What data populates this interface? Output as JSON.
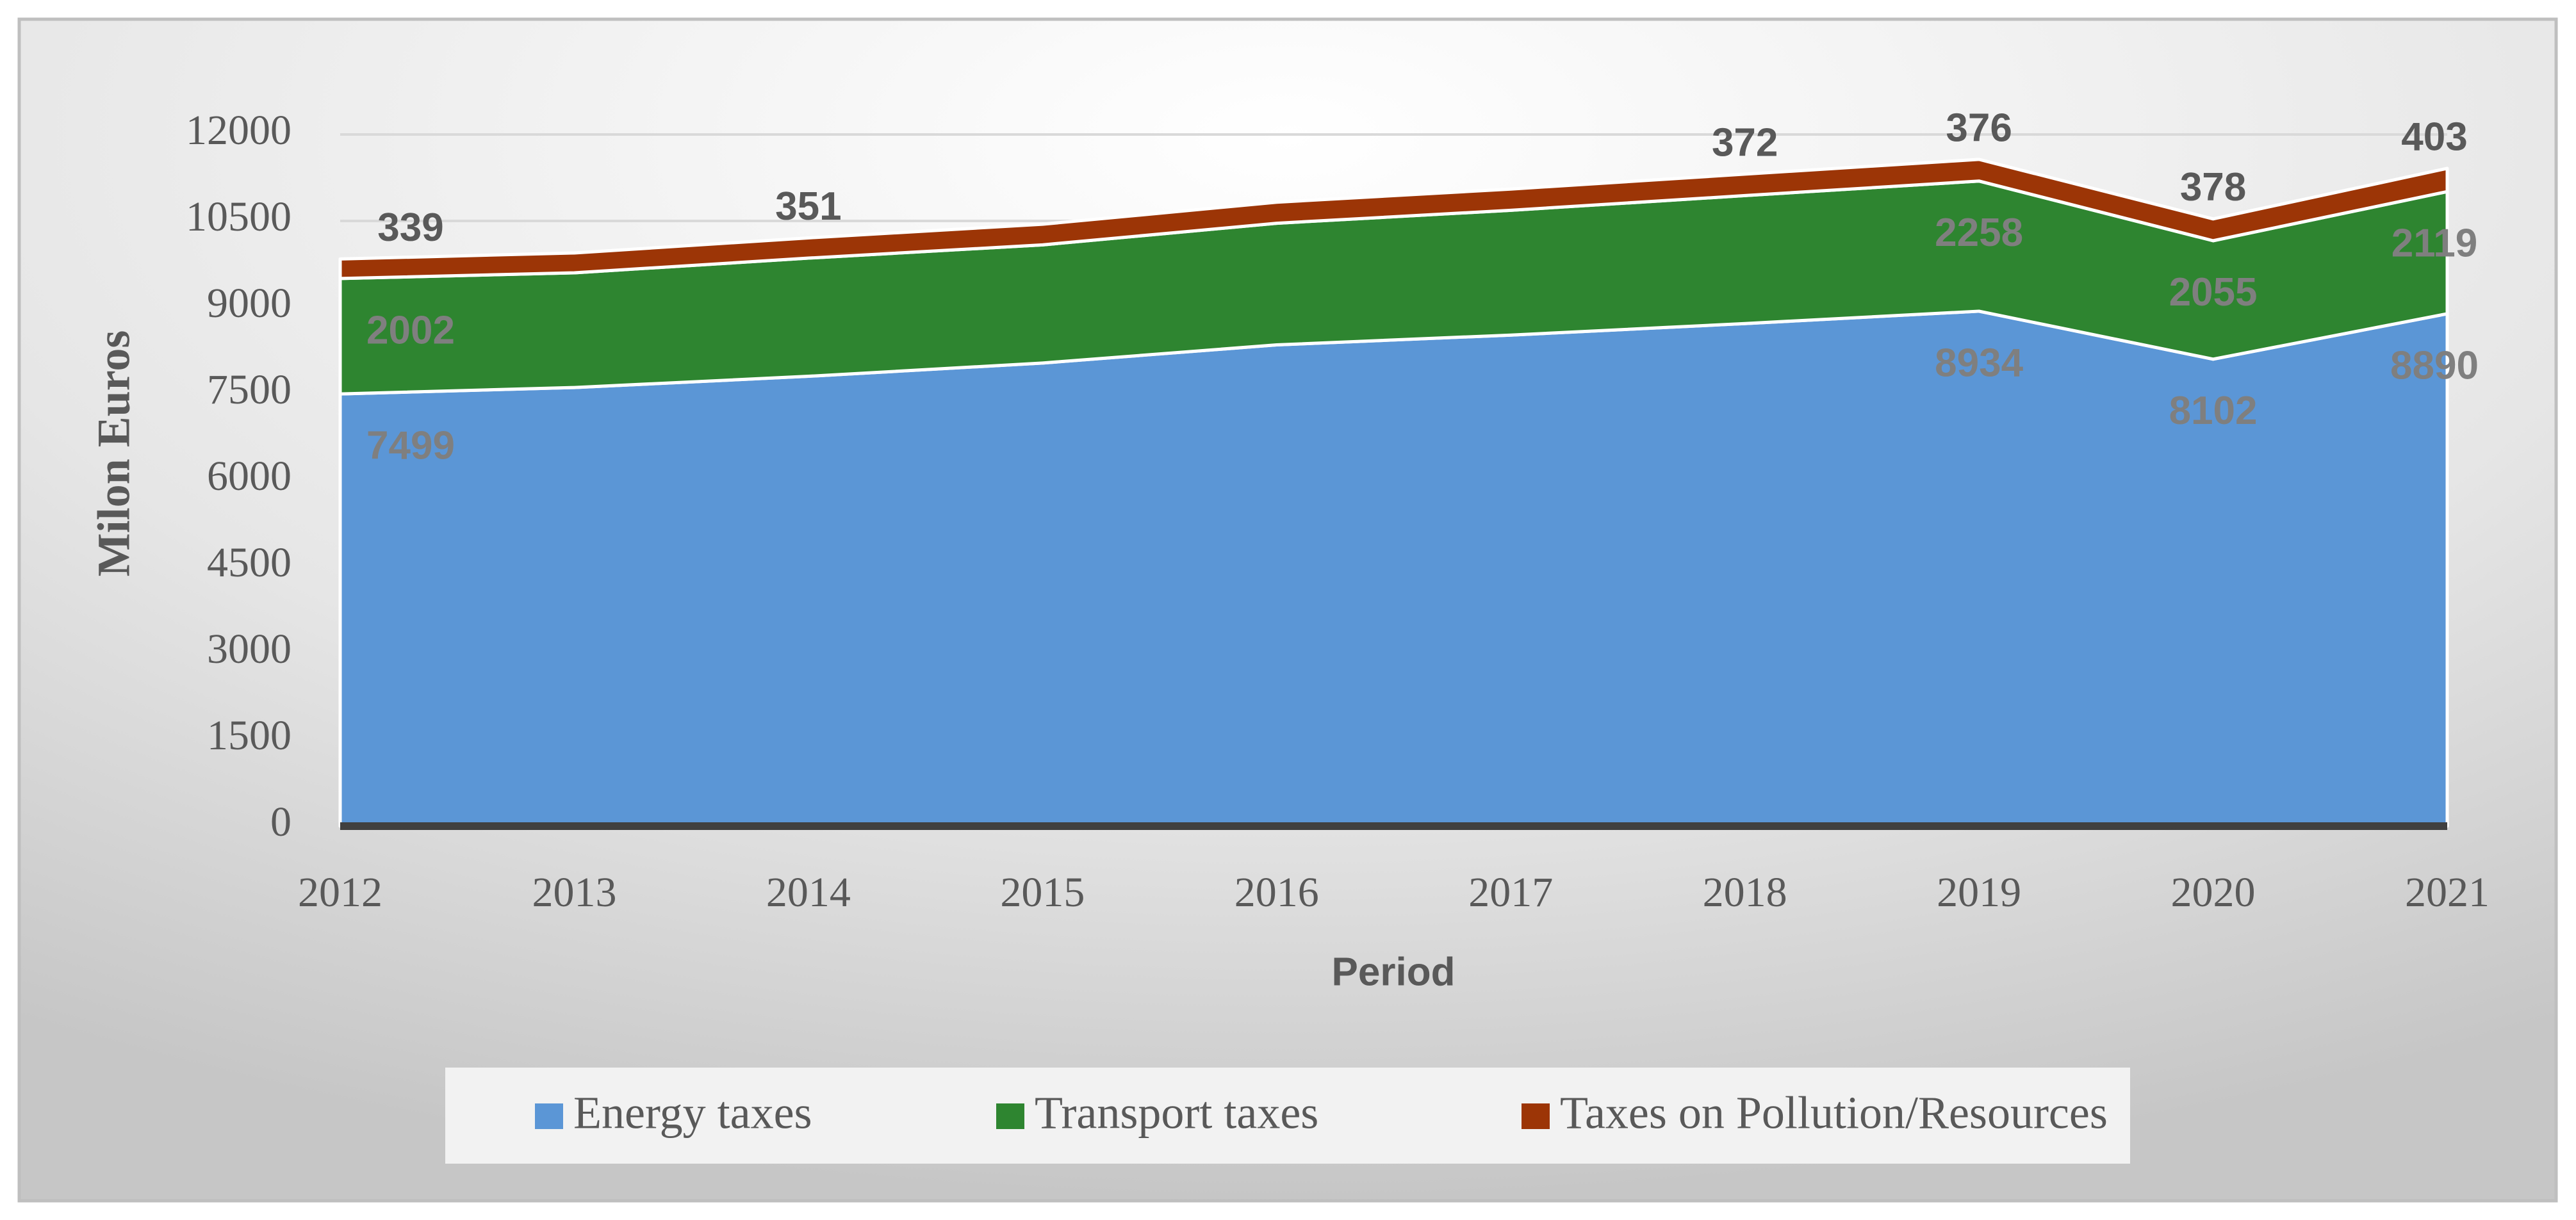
{
  "chart_data": {
    "type": "stacked-area",
    "x_label": "Period",
    "y_label": "Milon Euros",
    "categories": [
      "2012",
      "2013",
      "2014",
      "2015",
      "2016",
      "2017",
      "2018",
      "2019",
      "2020",
      "2021"
    ],
    "series": [
      {
        "name": "Energy taxes",
        "color": "#5b96d6",
        "values": [
          7499,
          7610,
          7805,
          8035,
          8350,
          8520,
          8720,
          8934,
          8102,
          8890
        ],
        "value_labels": [
          "7499",
          null,
          null,
          null,
          null,
          null,
          null,
          "8934",
          "8102",
          "8890"
        ]
      },
      {
        "name": "Transport taxes",
        "color": "#2e8530",
        "values": [
          2002,
          1990,
          2050,
          2050,
          2110,
          2165,
          2220,
          2258,
          2055,
          2119
        ],
        "value_labels": [
          "2002",
          null,
          null,
          null,
          null,
          null,
          null,
          "2258",
          "2055",
          "2119"
        ]
      },
      {
        "name": "Taxes on Pollution/Resources",
        "color": "#9c3506",
        "values": [
          339,
          345,
          351,
          358,
          365,
          368,
          372,
          376,
          378,
          403
        ],
        "value_labels": [
          "339",
          null,
          "351",
          null,
          null,
          null,
          "372",
          "376",
          "378",
          "403"
        ]
      }
    ],
    "ylim": [
      0,
      12000
    ],
    "yticks": [
      0,
      1500,
      3000,
      4500,
      6000,
      7500,
      9000,
      10500,
      12000
    ],
    "grid": true,
    "legend": "bottom"
  }
}
